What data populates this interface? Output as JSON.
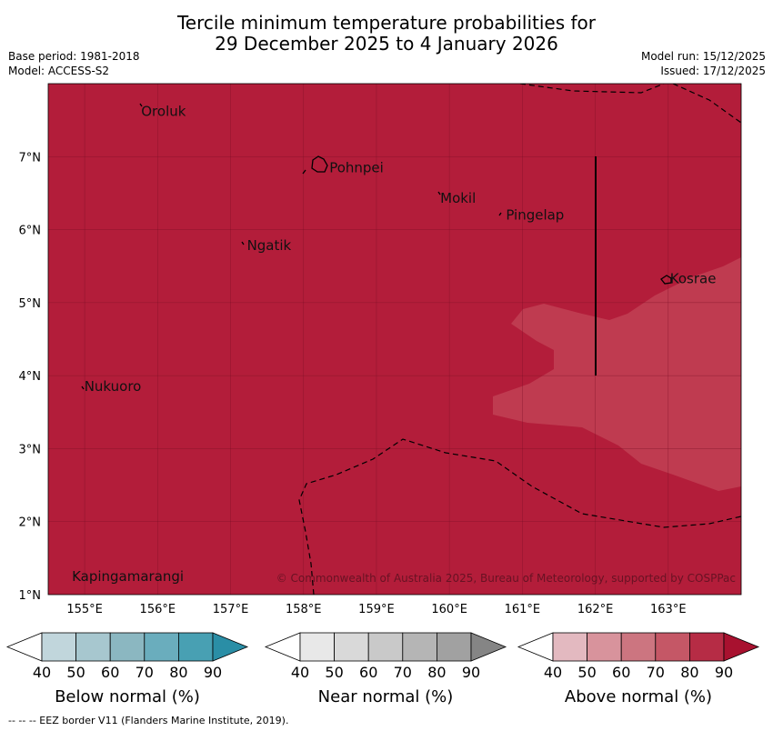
{
  "title": {
    "line1": "Tercile minimum temperature probabilities for",
    "line2": "29 December 2025 to 4 January 2026"
  },
  "meta": {
    "base_period": "Base period: 1981-2018",
    "model": "Model: ACCESS-S2",
    "model_run": "Model run: 15/12/2025",
    "issued": "Issued: 17/12/2025"
  },
  "map": {
    "lon_range": [
      154.5,
      164.0
    ],
    "lat_range": [
      1.0,
      8.0
    ],
    "lon_ticks": [
      "155°E",
      "156°E",
      "157°E",
      "158°E",
      "159°E",
      "160°E",
      "161°E",
      "162°E",
      "163°E"
    ],
    "lon_tick_values": [
      155,
      156,
      157,
      158,
      159,
      160,
      161,
      162,
      163
    ],
    "lat_ticks": [
      "1°N",
      "2°N",
      "3°N",
      "4°N",
      "5°N",
      "6°N",
      "7°N"
    ],
    "lat_tick_values": [
      1,
      2,
      3,
      4,
      5,
      6,
      7
    ],
    "places": [
      {
        "name": "Oroluk",
        "lon": 155.75,
        "lat": 7.62
      },
      {
        "name": "Pohnpei",
        "lon": 158.33,
        "lat": 6.85
      },
      {
        "name": "Mokil",
        "lon": 159.85,
        "lat": 6.43
      },
      {
        "name": "Pingelap",
        "lon": 160.75,
        "lat": 6.2
      },
      {
        "name": "Ngatik",
        "lon": 157.2,
        "lat": 5.78
      },
      {
        "name": "Kosrae",
        "lon": 163.0,
        "lat": 5.33
      },
      {
        "name": "Nukuoro",
        "lon": 154.97,
        "lat": 3.85
      },
      {
        "name": "Kapingamarangi",
        "lon": 154.8,
        "lat": 1.25
      }
    ],
    "copyright": "© Commonwealth of Australia 2025, Bureau of Meteorology, supported by COSPPac",
    "colors": {
      "above_80": "#b31d3a",
      "above_70": "#bf3b50",
      "land_outline": "#000000"
    }
  },
  "legends": [
    {
      "title": "Below normal (%)",
      "ticks": [
        "40",
        "50",
        "60",
        "70",
        "80",
        "90"
      ],
      "colors": [
        "#ffffff",
        "#c1d6dc",
        "#a7c7cf",
        "#8bb7c1",
        "#6aadbd",
        "#48a0b3",
        "#2a8ea6"
      ]
    },
    {
      "title": "Near normal (%)",
      "ticks": [
        "40",
        "50",
        "60",
        "70",
        "80",
        "90"
      ],
      "colors": [
        "#ffffff",
        "#e8e8e8",
        "#d9d9d9",
        "#c9c9c9",
        "#b5b5b5",
        "#a1a1a1",
        "#858585"
      ]
    },
    {
      "title": "Above normal (%)",
      "ticks": [
        "40",
        "50",
        "60",
        "70",
        "80",
        "90"
      ],
      "colors": [
        "#ffffff",
        "#e3b9c0",
        "#d8939c",
        "#cc7580",
        "#c55766",
        "#b62c45",
        "#a8112f"
      ]
    }
  ],
  "footnote": "--  --  -- EEZ border V11 (Flanders Marine Institute, 2019)."
}
